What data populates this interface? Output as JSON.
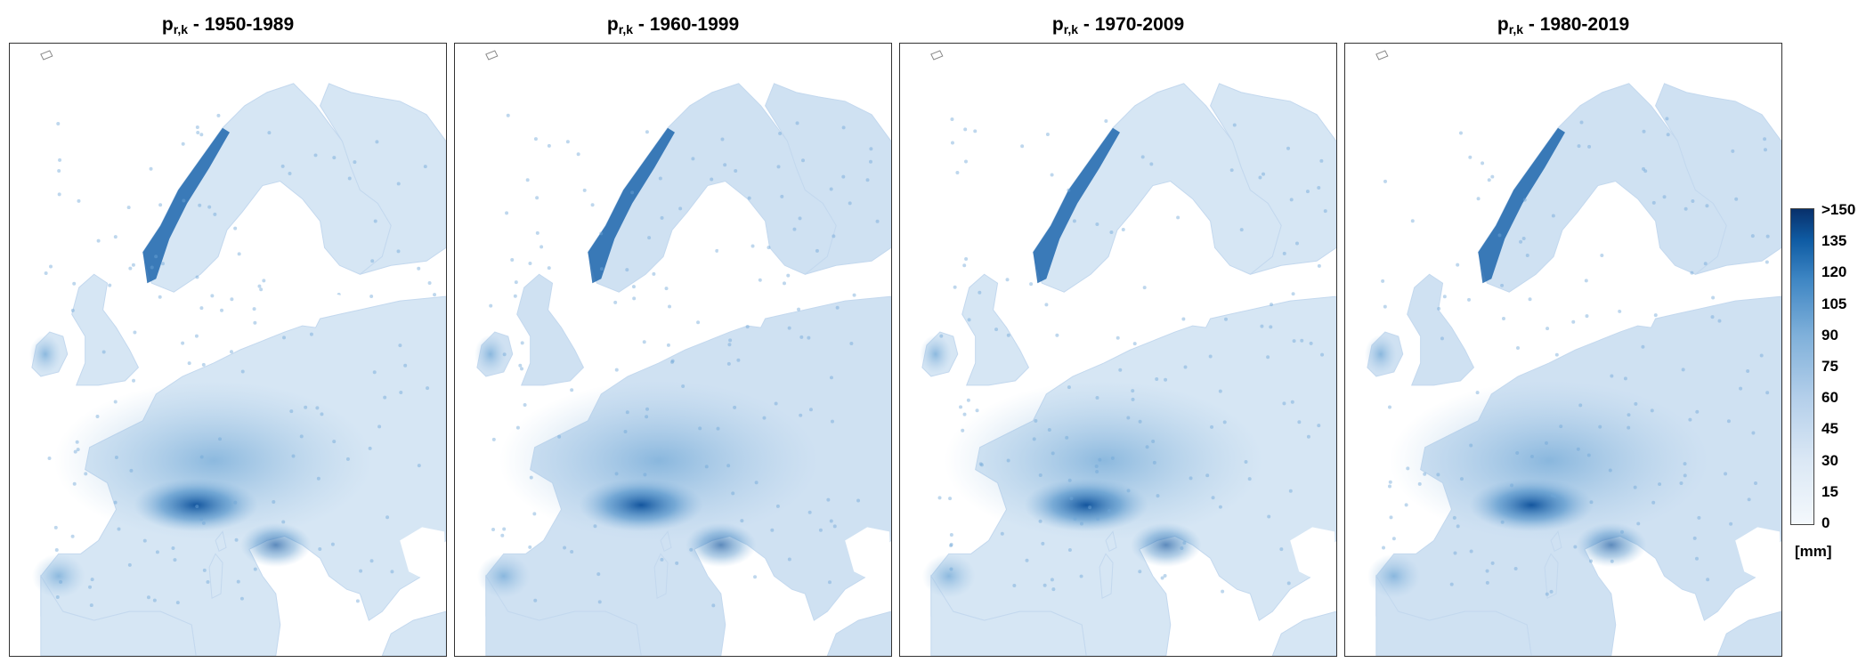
{
  "figure": {
    "panels": [
      {
        "title_symbol": "p",
        "title_sub": "r,k",
        "title_period": " - 1950-1989"
      },
      {
        "title_symbol": "p",
        "title_sub": "r,k",
        "title_period": " - 1960-1999"
      },
      {
        "title_symbol": "p",
        "title_sub": "r,k",
        "title_period": " - 1970-2009"
      },
      {
        "title_symbol": "p",
        "title_sub": "r,k",
        "title_period": " - 1980-2019"
      }
    ],
    "colorbar": {
      "unit": "[mm]",
      "ticks": [
        ">150",
        "135",
        "120",
        "105",
        "90",
        "75",
        "60",
        "45",
        "30",
        "15",
        "0"
      ],
      "colors": [
        "#f4f8fc",
        "#dbe8f5",
        "#b4cfea",
        "#7fb0da",
        "#3d85c3",
        "#0f5ca4",
        "#08306b"
      ]
    },
    "colors": {
      "sea": "#ffffff",
      "land_base": "#d6e6f4",
      "high_precip": "#0b4f9a"
    }
  }
}
